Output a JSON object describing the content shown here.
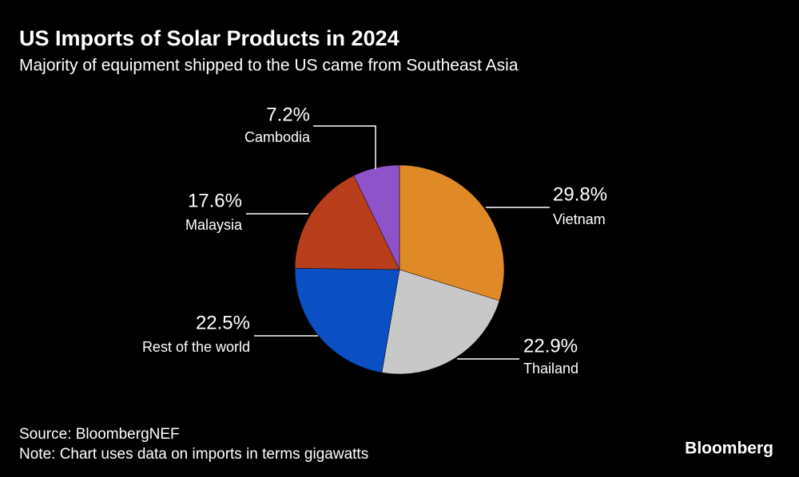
{
  "chart_data": {
    "type": "pie",
    "title": "US Imports of Solar Products in 2024",
    "subtitle": "Majority of equipment shipped to the US came from Southeast Asia",
    "categories": [
      "Vietnam",
      "Thailand",
      "Rest of the world",
      "Malaysia",
      "Cambodia"
    ],
    "values": [
      29.8,
      22.9,
      22.5,
      17.6,
      7.2
    ],
    "value_labels": [
      "29.8%",
      "22.9%",
      "22.5%",
      "17.6%",
      "7.2%"
    ],
    "colors": [
      "#e08a27",
      "#c8c8c8",
      "#0a4fc4",
      "#b83e1c",
      "#8e53c8"
    ],
    "source": "Source: BloombergNEF",
    "note": "Note: Chart uses data on imports in terms gigawatts",
    "logo": "Bloomberg"
  }
}
